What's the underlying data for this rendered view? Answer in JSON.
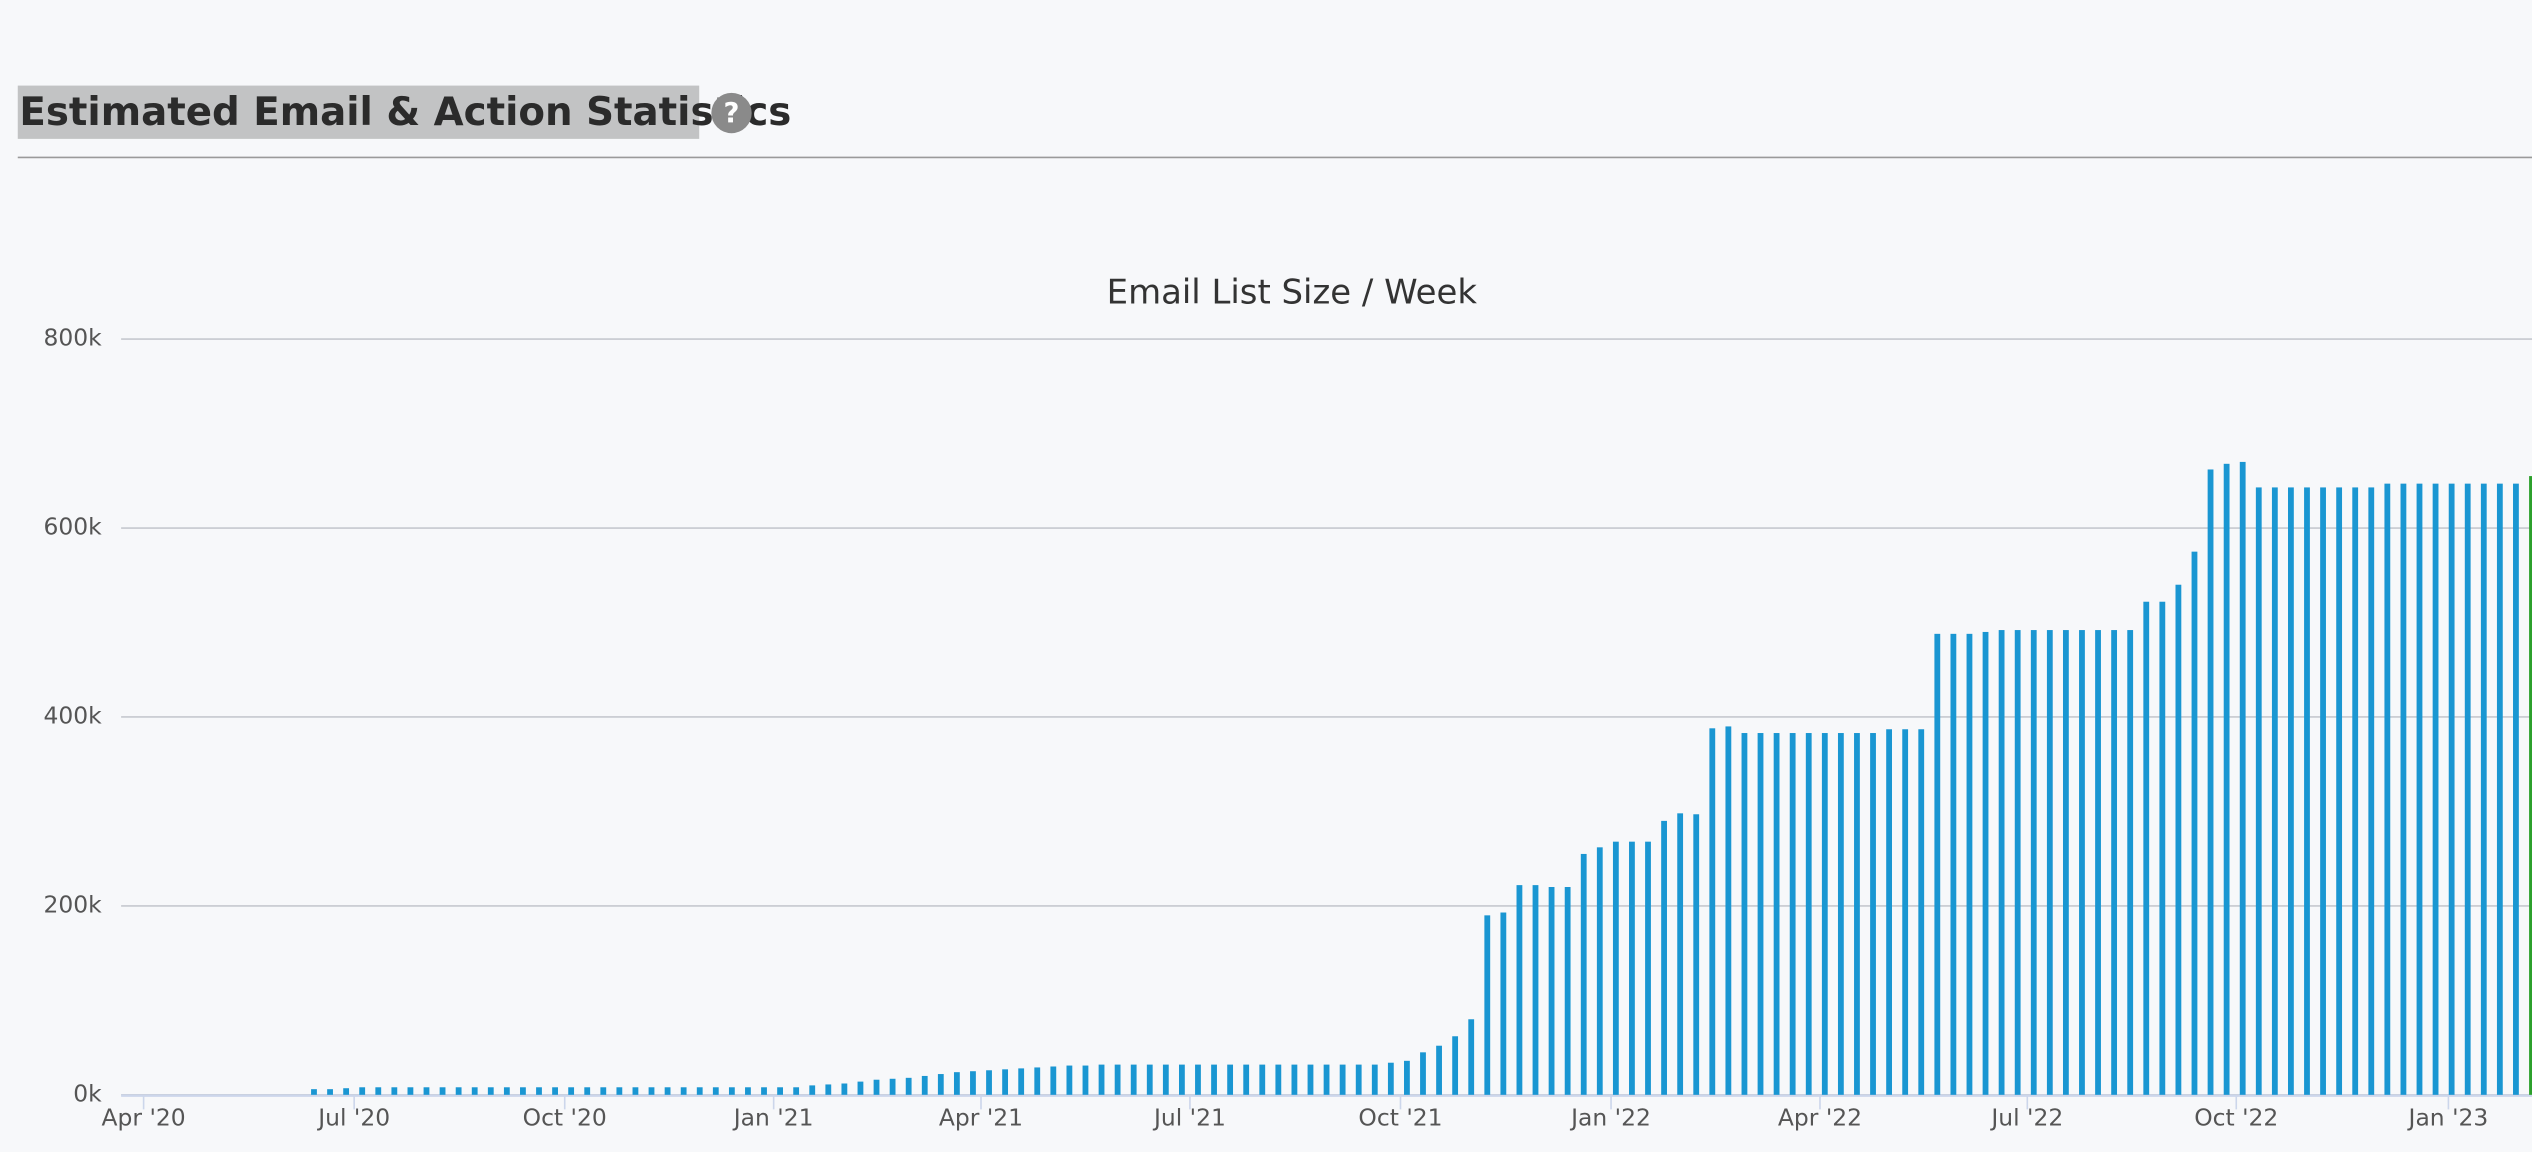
{
  "header": {
    "title": "Estimated Email & Action Statistics",
    "help_icon": "?"
  },
  "chart_data": {
    "type": "bar",
    "title": "Email List Size / Week",
    "categories": [
      null,
      null,
      null,
      null,
      null,
      null,
      null,
      null,
      null,
      null,
      null,
      null,
      null,
      null,
      null,
      null,
      null,
      null,
      null,
      null,
      null,
      null,
      null,
      null,
      null,
      null,
      null,
      null,
      null,
      null,
      null,
      null,
      null,
      null,
      null,
      null,
      null,
      null,
      null,
      null,
      null,
      null,
      null,
      null,
      null,
      null,
      null,
      null,
      null,
      null,
      null,
      null,
      null,
      null,
      null,
      null,
      null,
      null,
      null,
      null,
      null,
      null,
      null,
      null,
      null,
      null,
      null,
      null,
      null,
      null,
      null,
      null,
      null,
      null,
      null,
      null,
      null,
      null,
      null,
      null,
      null,
      null,
      null,
      null,
      null,
      null,
      null,
      null,
      null,
      null,
      null,
      null,
      null,
      null,
      null,
      null,
      null,
      null,
      null,
      null,
      null,
      null,
      null,
      null,
      null,
      null,
      null,
      null,
      null,
      null,
      null,
      null,
      null,
      null,
      null,
      null,
      null,
      null,
      null,
      null,
      null,
      null,
      null,
      null,
      null,
      null,
      null,
      null,
      null,
      null,
      null,
      null,
      null,
      null,
      null,
      null,
      null,
      null,
      null
    ],
    "values": [
      6000,
      6000,
      7000,
      8000,
      8000,
      8000,
      8000,
      8000,
      8000,
      8000,
      8000,
      8000,
      8000,
      8000,
      8000,
      8000,
      8000,
      8000,
      8000,
      8000,
      8000,
      8000,
      8000,
      8000,
      8000,
      8000,
      8000,
      8000,
      8000,
      8000,
      8000,
      10000,
      11000,
      12000,
      14000,
      16000,
      17000,
      18000,
      20000,
      22000,
      24000,
      25000,
      26000,
      27000,
      28000,
      29000,
      30000,
      31000,
      31000,
      32000,
      32000,
      32000,
      32000,
      32000,
      32000,
      32000,
      32000,
      32000,
      32000,
      32000,
      32000,
      32000,
      32000,
      32000,
      32000,
      32000,
      32000,
      34000,
      36000,
      45000,
      52000,
      62000,
      80000,
      190000,
      193000,
      222000,
      222000,
      220000,
      220000,
      255000,
      262000,
      268000,
      268000,
      268000,
      290000,
      298000,
      297000,
      388000,
      390000,
      383000,
      383000,
      383000,
      383000,
      383000,
      383000,
      383000,
      383000,
      383000,
      387000,
      387000,
      387000,
      488000,
      488000,
      488000,
      490000,
      492000,
      492000,
      492000,
      492000,
      492000,
      492000,
      492000,
      492000,
      492000,
      522000,
      522000,
      540000,
      575000,
      662000,
      668000,
      670000,
      643000,
      643000,
      643000,
      643000,
      643000,
      643000,
      643000,
      643000,
      647000,
      647000,
      647000,
      647000,
      647000,
      647000,
      647000,
      647000,
      647000,
      655000
    ],
    "color": "#1a96d2",
    "last_color": "#2ca02c",
    "xlim": [
      -12,
      138
    ],
    "xticks": [
      {
        "value": -10.6,
        "label": "Apr '20"
      },
      {
        "value": 2.5,
        "label": "Jul '20"
      },
      {
        "value": 15.6,
        "label": "Oct '20"
      },
      {
        "value": 28.6,
        "label": "Jan '21"
      },
      {
        "value": 41.5,
        "label": "Apr '21"
      },
      {
        "value": 54.5,
        "label": "Jul '21"
      },
      {
        "value": 67.6,
        "label": "Oct '21"
      },
      {
        "value": 80.7,
        "label": "Jan '22"
      },
      {
        "value": 93.7,
        "label": "Apr '22"
      },
      {
        "value": 106.6,
        "label": "Jul '22"
      },
      {
        "value": 119.6,
        "label": "Oct '22"
      },
      {
        "value": 132.8,
        "label": "Jan '23"
      }
    ],
    "ylim": [
      0,
      800000
    ],
    "yticks": [
      {
        "value": 0,
        "label": "0k"
      },
      {
        "value": 200000,
        "label": "200k"
      },
      {
        "value": 400000,
        "label": "400k"
      },
      {
        "value": 600000,
        "label": "600k"
      },
      {
        "value": 800000,
        "label": "800k"
      }
    ],
    "grid": true
  }
}
